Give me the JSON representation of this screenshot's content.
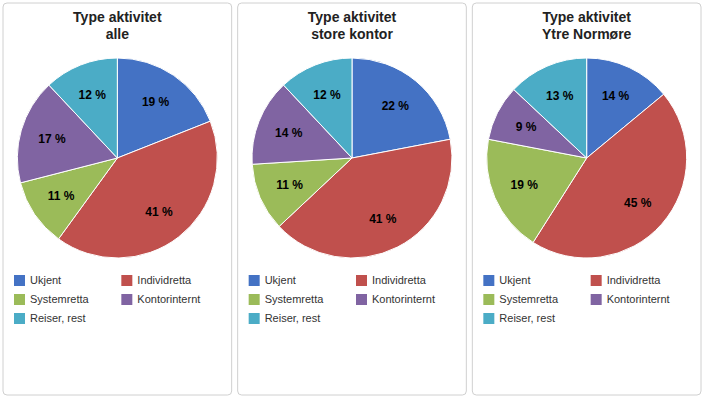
{
  "chart_data": [
    {
      "type": "pie",
      "title": "Type aktivitet\nalle",
      "categories": [
        "Ukjent",
        "Individretta",
        "Systemretta",
        "Kontorinternt",
        "Reiser, rest"
      ],
      "values": [
        19,
        41,
        11,
        17,
        12
      ],
      "value_labels": [
        "19 %",
        "41 %",
        "11 %",
        "17 %",
        "12 %"
      ],
      "colors": [
        "#4472C4",
        "#C0504D",
        "#9BBB59",
        "#8064A2",
        "#4BACC6"
      ],
      "data_labels": true,
      "legend": "bottom"
    },
    {
      "type": "pie",
      "title": "Type aktivitet\nstore kontor",
      "categories": [
        "Ukjent",
        "Individretta",
        "Systemretta",
        "Kontorinternt",
        "Reiser, rest"
      ],
      "values": [
        22,
        41,
        11,
        14,
        12
      ],
      "value_labels": [
        "22 %",
        "41 %",
        "11 %",
        "14 %",
        "12 %"
      ],
      "colors": [
        "#4472C4",
        "#C0504D",
        "#9BBB59",
        "#8064A2",
        "#4BACC6"
      ],
      "data_labels": true,
      "legend": "bottom"
    },
    {
      "type": "pie",
      "title": "Type aktivitet\nYtre Normøre",
      "categories": [
        "Ukjent",
        "Individretta",
        "Systemretta",
        "Kontorinternt",
        "Reiser, rest"
      ],
      "values": [
        14,
        45,
        19,
        9,
        13
      ],
      "value_labels": [
        "14 %",
        "45 %",
        "19 %",
        "9 %",
        "13 %"
      ],
      "colors": [
        "#4472C4",
        "#C0504D",
        "#9BBB59",
        "#8064A2",
        "#4BACC6"
      ],
      "data_labels": true,
      "legend": "bottom"
    }
  ]
}
